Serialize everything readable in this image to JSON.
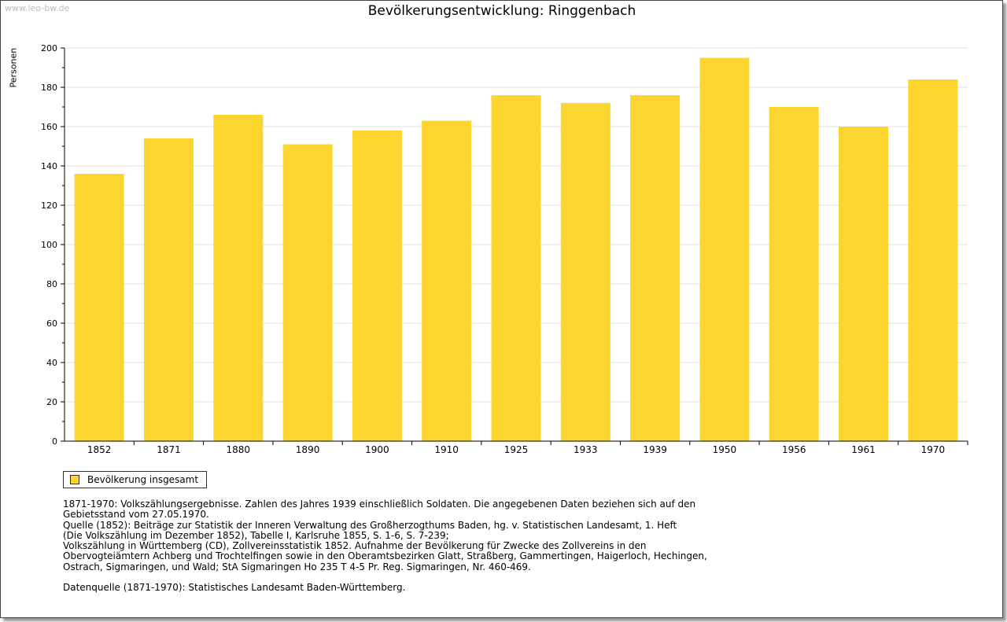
{
  "watermark": "www.leo-bw.de",
  "chart_data": {
    "type": "bar",
    "title": "Bevölkerungsentwicklung: Ringgenbach",
    "xlabel": "",
    "ylabel": "Personen",
    "ylim": [
      0,
      200
    ],
    "yticks": [
      "0",
      "20",
      "40",
      "60",
      "80",
      "100",
      "120",
      "140",
      "160",
      "180",
      "200"
    ],
    "grid": true,
    "legend_position": "bottom-left",
    "categories": [
      "1852",
      "1871",
      "1880",
      "1890",
      "1900",
      "1910",
      "1925",
      "1933",
      "1939",
      "1950",
      "1956",
      "1961",
      "1970"
    ],
    "series": [
      {
        "name": "Bevölkerung insgesamt",
        "color": "#fcd62e",
        "values": [
          136,
          154,
          166,
          151,
          158,
          163,
          176,
          172,
          176,
          195,
          170,
          160,
          184
        ]
      }
    ]
  },
  "notes": [
    "1871-1970: Volkszählungsergebnisse. Zahlen des Jahres 1939 einschließlich Soldaten. Die angegebenen Daten beziehen sich auf den",
    "Gebietsstand vom 27.05.1970.",
    "Quelle (1852): Beiträge zur Statistik der Inneren Verwaltung des Großherzogthums Baden, hg. v. Statistischen Landesamt, 1. Heft",
    "(Die Volkszählung im Dezember 1852), Tabelle I, Karlsruhe 1855, S. 1-6, S. 7-239;",
    "Volkszählung in Württemberg (CD), Zollvereinsstatistik 1852. Aufnahme der Bevölkerung für Zwecke des Zollvereins in den",
    "Obervogteiämtern Achberg und Trochtelfingen sowie in den Oberamtsbezirken Glatt, Straßberg, Gammertingen, Haigerloch, Hechingen,",
    "Ostrach, Sigmaringen, und Wald; StA Sigmaringen Ho 235 T 4-5 Pr. Reg. Sigmaringen, Nr. 460-469."
  ],
  "source": "Datenquelle (1871-1970): Statistisches Landesamt Baden-Württemberg."
}
